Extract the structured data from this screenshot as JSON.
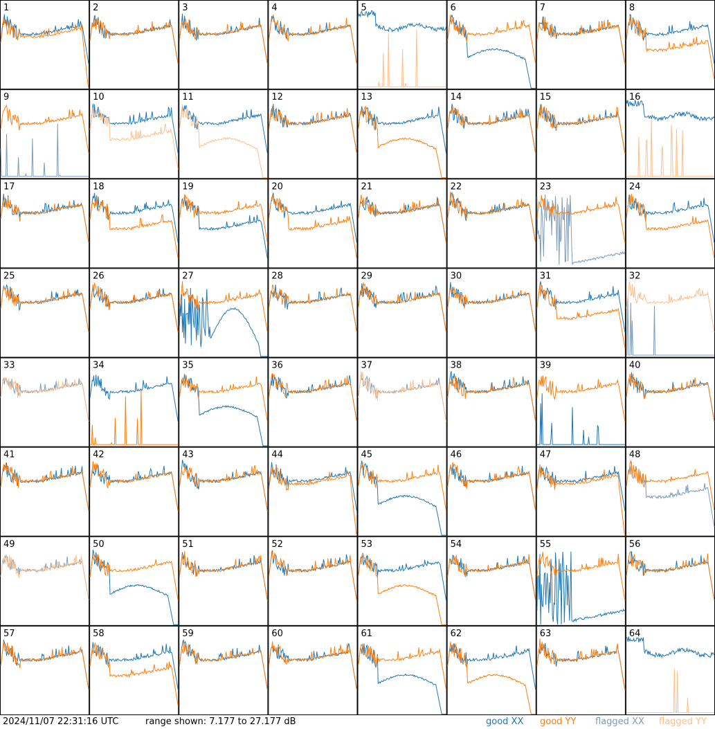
{
  "footer": {
    "timestamp": "2024/11/07 22:31:16 UTC",
    "range_text": "range shown: 7.177 to 27.177 dB",
    "legend": {
      "good_xx": "good XX",
      "good_yy": "good YY",
      "flagged_xx": "flagged XX",
      "flagged_yy": "flagged YY"
    }
  },
  "colors": {
    "good_xx": "#1f77b4",
    "good_yy": "#ff7f0e",
    "flagged_xx": "#7f9cb8",
    "flagged_yy": "#ffbf8a"
  },
  "chart_data": {
    "type": "line",
    "layout": "8x8 small-multiples grid",
    "ylim_db": [
      7.177,
      27.177
    ],
    "panels": [
      {
        "id": "1",
        "xx": "good",
        "yy": "good",
        "shape": {
          "xx": "normal",
          "yy": "dropend"
        }
      },
      {
        "id": "2",
        "xx": "good",
        "yy": "good",
        "shape": {
          "xx": "normal",
          "yy": "normal"
        }
      },
      {
        "id": "3",
        "xx": "good",
        "yy": "good",
        "shape": {
          "xx": "normal",
          "yy": "normal"
        }
      },
      {
        "id": "4",
        "xx": "good",
        "yy": "good",
        "shape": {
          "xx": "normal",
          "yy": "normal"
        }
      },
      {
        "id": "5",
        "xx": "good",
        "yy": "flagged",
        "shape": {
          "xx": "high",
          "yy": "spiky-flat"
        }
      },
      {
        "id": "6",
        "xx": "good",
        "yy": "good",
        "shape": {
          "xx": "low-drop",
          "yy": "normal"
        }
      },
      {
        "id": "7",
        "xx": "good",
        "yy": "good",
        "shape": {
          "xx": "normal",
          "yy": "normal"
        }
      },
      {
        "id": "8",
        "xx": "good",
        "yy": "good",
        "shape": {
          "xx": "normal",
          "yy": "low"
        }
      },
      {
        "id": "9",
        "xx": "flagged",
        "yy": "good",
        "shape": {
          "xx": "spiky-flat",
          "yy": "normal"
        }
      },
      {
        "id": "10",
        "xx": "good",
        "yy": "flagged",
        "shape": {
          "xx": "normal",
          "yy": "low"
        }
      },
      {
        "id": "11",
        "xx": "good",
        "yy": "flagged",
        "shape": {
          "xx": "normal",
          "yy": "low-drop"
        }
      },
      {
        "id": "12",
        "xx": "good",
        "yy": "good",
        "shape": {
          "xx": "normal",
          "yy": "normal"
        }
      },
      {
        "id": "13",
        "xx": "good",
        "yy": "good",
        "shape": {
          "xx": "normal",
          "yy": "low-drop"
        }
      },
      {
        "id": "14",
        "xx": "good",
        "yy": "good",
        "shape": {
          "xx": "normal",
          "yy": "normal"
        }
      },
      {
        "id": "15",
        "xx": "good",
        "yy": "good",
        "shape": {
          "xx": "normal",
          "yy": "normal"
        }
      },
      {
        "id": "16",
        "xx": "good",
        "yy": "flagged",
        "shape": {
          "xx": "high",
          "yy": "spiky-flat"
        }
      },
      {
        "id": "17",
        "xx": "good",
        "yy": "good",
        "shape": {
          "xx": "normal",
          "yy": "normal"
        }
      },
      {
        "id": "18",
        "xx": "good",
        "yy": "good",
        "shape": {
          "xx": "normal",
          "yy": "low"
        }
      },
      {
        "id": "19",
        "xx": "good",
        "yy": "good",
        "shape": {
          "xx": "low",
          "yy": "normal"
        }
      },
      {
        "id": "20",
        "xx": "good",
        "yy": "good",
        "shape": {
          "xx": "normal",
          "yy": "low"
        }
      },
      {
        "id": "21",
        "xx": "good",
        "yy": "good",
        "shape": {
          "xx": "normal",
          "yy": "normal"
        }
      },
      {
        "id": "22",
        "xx": "good",
        "yy": "good",
        "shape": {
          "xx": "normal",
          "yy": "normal"
        }
      },
      {
        "id": "23",
        "xx": "flagged",
        "yy": "good",
        "shape": {
          "xx": "noisy-bottom",
          "yy": "normal"
        }
      },
      {
        "id": "24",
        "xx": "good",
        "yy": "good",
        "shape": {
          "xx": "normal",
          "yy": "low"
        }
      },
      {
        "id": "25",
        "xx": "good",
        "yy": "good",
        "shape": {
          "xx": "normal",
          "yy": "normal"
        }
      },
      {
        "id": "26",
        "xx": "good",
        "yy": "good",
        "shape": {
          "xx": "normal",
          "yy": "normal"
        }
      },
      {
        "id": "27",
        "xx": "good",
        "yy": "good",
        "shape": {
          "xx": "noisy-hump",
          "yy": "normal"
        }
      },
      {
        "id": "28",
        "xx": "good",
        "yy": "good",
        "shape": {
          "xx": "normal",
          "yy": "normal"
        }
      },
      {
        "id": "29",
        "xx": "good",
        "yy": "good",
        "shape": {
          "xx": "normal",
          "yy": "normal"
        }
      },
      {
        "id": "30",
        "xx": "good",
        "yy": "good",
        "shape": {
          "xx": "normal",
          "yy": "normal"
        }
      },
      {
        "id": "31",
        "xx": "good",
        "yy": "good",
        "shape": {
          "xx": "normal",
          "yy": "low"
        }
      },
      {
        "id": "32",
        "xx": "flagged",
        "yy": "flagged",
        "shape": {
          "xx": "spiky-flat",
          "yy": "normal"
        }
      },
      {
        "id": "33",
        "xx": "flagged",
        "yy": "flagged",
        "shape": {
          "xx": "normal",
          "yy": "normal"
        }
      },
      {
        "id": "34",
        "xx": "good",
        "yy": "good",
        "shape": {
          "xx": "normal",
          "yy": "spiky-flat"
        }
      },
      {
        "id": "35",
        "xx": "good",
        "yy": "good",
        "shape": {
          "xx": "low-drop",
          "yy": "normal"
        }
      },
      {
        "id": "36",
        "xx": "good",
        "yy": "good",
        "shape": {
          "xx": "normal",
          "yy": "normal"
        }
      },
      {
        "id": "37",
        "xx": "flagged",
        "yy": "flagged",
        "shape": {
          "xx": "normal",
          "yy": "normal"
        }
      },
      {
        "id": "38",
        "xx": "good",
        "yy": "good",
        "shape": {
          "xx": "normal",
          "yy": "normal"
        }
      },
      {
        "id": "39",
        "xx": "good",
        "yy": "good",
        "shape": {
          "xx": "spiky-flat",
          "yy": "normal"
        }
      },
      {
        "id": "40",
        "xx": "good",
        "yy": "good",
        "shape": {
          "xx": "normal",
          "yy": "normal"
        }
      },
      {
        "id": "41",
        "xx": "good",
        "yy": "good",
        "shape": {
          "xx": "normal",
          "yy": "normal"
        }
      },
      {
        "id": "42",
        "xx": "good",
        "yy": "good",
        "shape": {
          "xx": "normal",
          "yy": "normal"
        }
      },
      {
        "id": "43",
        "xx": "good",
        "yy": "good",
        "shape": {
          "xx": "normal",
          "yy": "normal"
        }
      },
      {
        "id": "44",
        "xx": "good",
        "yy": "good",
        "shape": {
          "xx": "normal",
          "yy": "dropend"
        }
      },
      {
        "id": "45",
        "xx": "good",
        "yy": "good",
        "shape": {
          "xx": "low-drop",
          "yy": "normal"
        }
      },
      {
        "id": "46",
        "xx": "good",
        "yy": "good",
        "shape": {
          "xx": "normal",
          "yy": "normal"
        }
      },
      {
        "id": "47",
        "xx": "good",
        "yy": "good",
        "shape": {
          "xx": "normal",
          "yy": "dropend"
        }
      },
      {
        "id": "48",
        "xx": "flagged",
        "yy": "good",
        "shape": {
          "xx": "low",
          "yy": "normal"
        }
      },
      {
        "id": "49",
        "xx": "flagged",
        "yy": "flagged",
        "shape": {
          "xx": "normal",
          "yy": "normal"
        }
      },
      {
        "id": "50",
        "xx": "good",
        "yy": "good",
        "shape": {
          "xx": "low-drop",
          "yy": "normal"
        }
      },
      {
        "id": "51",
        "xx": "good",
        "yy": "good",
        "shape": {
          "xx": "normal",
          "yy": "normal"
        }
      },
      {
        "id": "52",
        "xx": "good",
        "yy": "good",
        "shape": {
          "xx": "normal",
          "yy": "normal"
        }
      },
      {
        "id": "53",
        "xx": "good",
        "yy": "good",
        "shape": {
          "xx": "normal",
          "yy": "low-drop"
        }
      },
      {
        "id": "54",
        "xx": "good",
        "yy": "good",
        "shape": {
          "xx": "normal",
          "yy": "normal"
        }
      },
      {
        "id": "55",
        "xx": "good",
        "yy": "good",
        "shape": {
          "xx": "noisy-bottom",
          "yy": "normal"
        }
      },
      {
        "id": "56",
        "xx": "good",
        "yy": "good",
        "shape": {
          "xx": "normal",
          "yy": "normal"
        }
      },
      {
        "id": "57",
        "xx": "good",
        "yy": "good",
        "shape": {
          "xx": "normal",
          "yy": "normal"
        }
      },
      {
        "id": "58",
        "xx": "good",
        "yy": "good",
        "shape": {
          "xx": "normal",
          "yy": "low"
        }
      },
      {
        "id": "59",
        "xx": "good",
        "yy": "good",
        "shape": {
          "xx": "normal",
          "yy": "normal"
        }
      },
      {
        "id": "60",
        "xx": "good",
        "yy": "good",
        "shape": {
          "xx": "normal",
          "yy": "normal"
        }
      },
      {
        "id": "61",
        "xx": "good",
        "yy": "good",
        "shape": {
          "xx": "low-drop",
          "yy": "normal"
        }
      },
      {
        "id": "62",
        "xx": "good",
        "yy": "good",
        "shape": {
          "xx": "normal",
          "yy": "low-drop"
        }
      },
      {
        "id": "63",
        "xx": "good",
        "yy": "good",
        "shape": {
          "xx": "normal",
          "yy": "normal"
        }
      },
      {
        "id": "64",
        "xx": "good",
        "yy": "flagged",
        "shape": {
          "xx": "high",
          "yy": "spiky-flat"
        }
      }
    ]
  }
}
